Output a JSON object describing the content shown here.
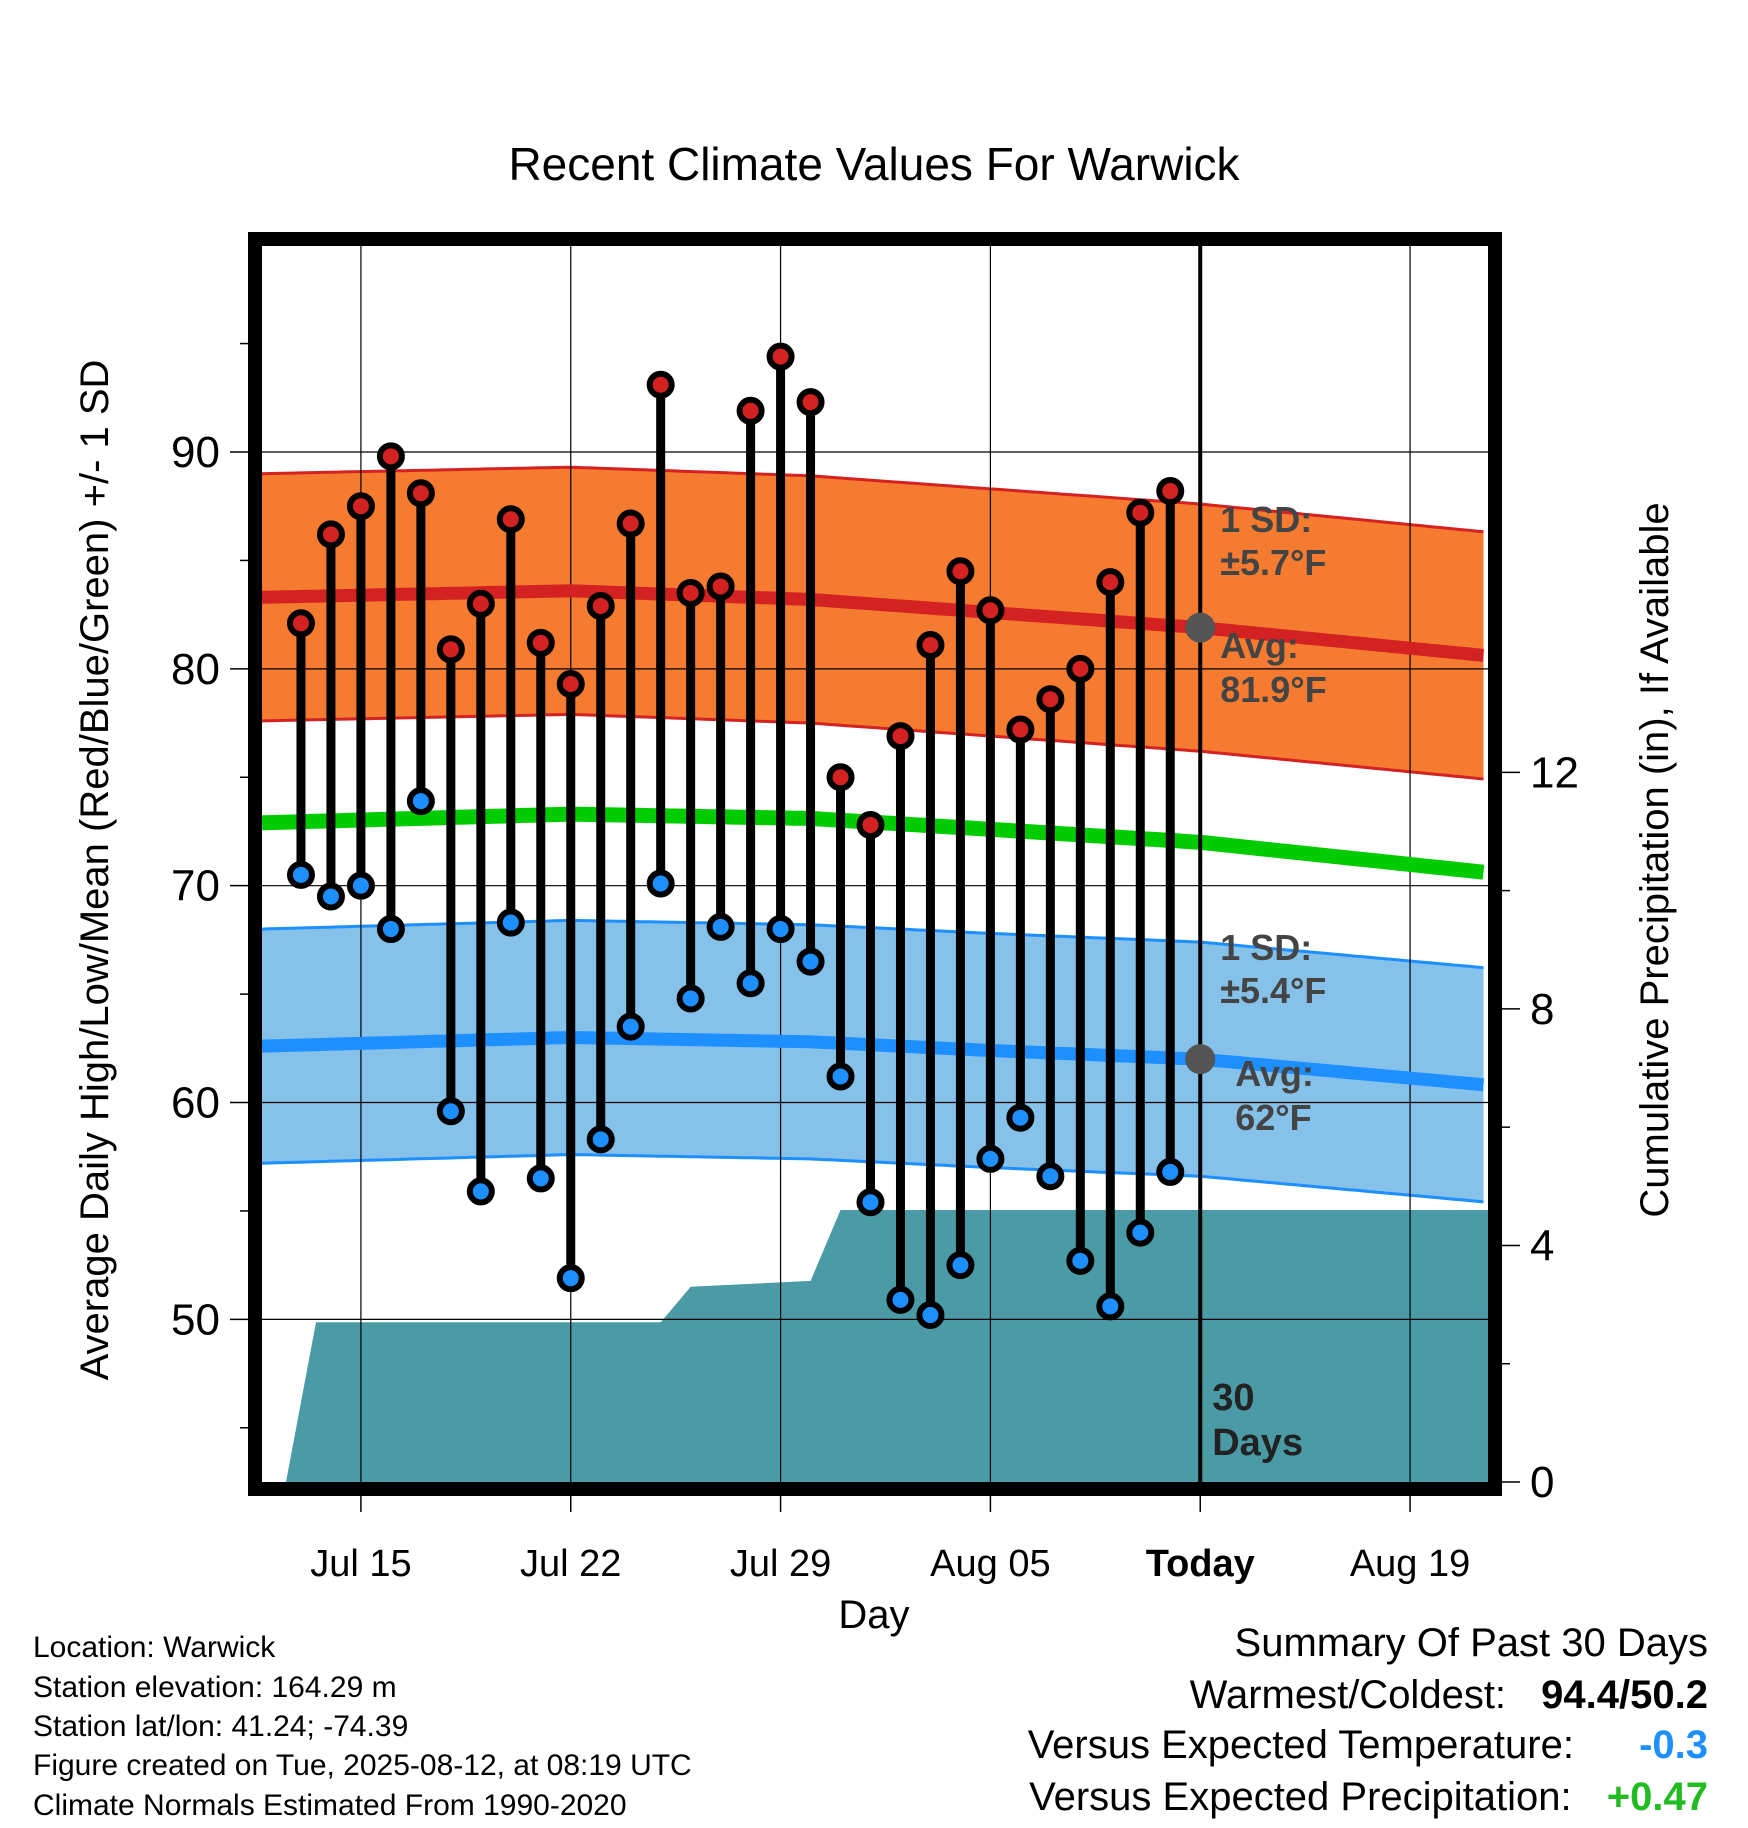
{
  "chart_data": {
    "type": "line",
    "title": "Recent Climate Values For Warwick",
    "xlabel": "Day",
    "ylabel": "Average Daily High/Low/Mean (Red/Blue/Green) +/- 1 SD",
    "y2label": "Cumulative Precipitation (in), If Available",
    "ylim": [
      42.5,
      99.5
    ],
    "y2lim": [
      0,
      20.9
    ],
    "y_ticks": [
      "50",
      "60",
      "70",
      "80",
      "90"
    ],
    "y2_ticks": [
      "0",
      "4",
      "8",
      "12"
    ],
    "x_ticks": [
      "Jul 15",
      "Jul 22",
      "Jul 29",
      "Aug 05",
      "Today",
      "Aug 19"
    ],
    "x_tick_days": [
      15,
      22,
      29,
      36,
      43,
      50
    ],
    "xlim": [
      11.7,
      52.6
    ],
    "grid": true,
    "today_day": 43,
    "today_label": [
      "30",
      "Days"
    ],
    "days": [
      13,
      14,
      15,
      16,
      17,
      18,
      19,
      20,
      21,
      22,
      23,
      24,
      25,
      26,
      27,
      28,
      29,
      30,
      31,
      32,
      33,
      34,
      35,
      36,
      37,
      38,
      39,
      40,
      41,
      42
    ],
    "daily_high": [
      82.1,
      86.2,
      87.5,
      89.8,
      88.1,
      80.9,
      83.0,
      86.9,
      81.2,
      79.3,
      82.9,
      86.7,
      93.1,
      83.5,
      83.8,
      91.9,
      94.4,
      92.3,
      75.0,
      72.8,
      76.9,
      81.1,
      84.5,
      82.7,
      77.2,
      78.6,
      80.0,
      84.0,
      87.2,
      88.2
    ],
    "daily_low": [
      70.5,
      69.5,
      70.0,
      68.0,
      73.9,
      59.6,
      55.9,
      68.3,
      56.5,
      51.9,
      58.3,
      63.5,
      70.1,
      64.8,
      68.1,
      65.5,
      68.0,
      66.5,
      61.2,
      55.4,
      50.9,
      50.2,
      52.5,
      57.4,
      59.3,
      56.6,
      52.7,
      50.6,
      54.0,
      56.8
    ],
    "normals": {
      "days": [
        11.7,
        22,
        30,
        36,
        43,
        52.6
      ],
      "high_avg": [
        83.3,
        83.6,
        83.2,
        82.6,
        81.9,
        80.6
      ],
      "high_sd": 5.7,
      "low_avg": [
        62.6,
        63.0,
        62.8,
        62.4,
        62.0,
        60.8
      ],
      "low_sd": 5.4,
      "mean_avg": [
        72.9,
        73.3,
        73.1,
        72.6,
        72.0,
        70.6
      ]
    },
    "precip_cumulative": {
      "days": [
        12.5,
        13.5,
        20.9,
        25.0,
        26.0,
        30.0,
        31.0,
        32.0,
        52.6
      ],
      "values": [
        0,
        2.7,
        2.7,
        2.7,
        3.3,
        3.4,
        4.6,
        4.6,
        4.6
      ]
    },
    "annotations": {
      "high_sd_label": "1 SD:",
      "high_sd_value": "±5.7°F",
      "high_avg_label": "Avg:",
      "high_avg_value": "81.9°F",
      "low_sd_label": "1 SD:",
      "low_sd_value": "±5.4°F",
      "low_avg_label": "Avg:",
      "low_avg_value": "62°F"
    },
    "colors": {
      "high_band": "#f47b30",
      "high_line": "#d42222",
      "low_band": "#85c1e8",
      "low_line": "#1e8fff",
      "mean_line": "#00cc00",
      "precip": "#4a9ba5",
      "high_dot": "#d42222",
      "low_dot": "#1e8fff"
    }
  },
  "info": {
    "location": "Location: Warwick",
    "elevation": "Station elevation: 164.29 m",
    "latlon": "Station lat/lon: 41.24; -74.39",
    "created": "Figure created on Tue, 2025-08-12, at 08:19 UTC",
    "normals": "Climate Normals Estimated From 1990-2020"
  },
  "summary": {
    "title": "Summary Of Past 30 Days",
    "warmest_label": "Warmest/Coldest:",
    "warmest_value": "94.4/50.2",
    "temp_label": "Versus Expected Temperature:",
    "temp_value": "-0.3",
    "temp_color": "#1e8fff",
    "precip_label": "Versus Expected Precipitation:",
    "precip_value": "+0.47",
    "precip_color": "#22bb22"
  }
}
